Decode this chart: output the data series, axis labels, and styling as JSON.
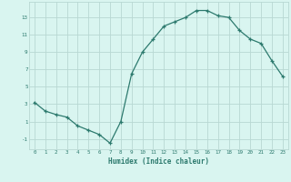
{
  "x": [
    0,
    1,
    2,
    3,
    4,
    5,
    6,
    7,
    8,
    9,
    10,
    11,
    12,
    13,
    14,
    15,
    16,
    17,
    18,
    19,
    20,
    21,
    22,
    23
  ],
  "y": [
    3.2,
    2.2,
    1.8,
    1.5,
    0.5,
    0.0,
    -0.5,
    -1.5,
    1.0,
    6.5,
    9.0,
    10.5,
    12.0,
    12.5,
    13.0,
    13.8,
    13.8,
    13.2,
    13.0,
    11.5,
    10.5,
    10.0,
    8.0,
    6.2
  ],
  "xlabel": "Humidex (Indice chaleur)",
  "line_color": "#2d7a6e",
  "bg_color": "#d9f5f0",
  "grid_color": "#b8d8d3",
  "tick_label_color": "#2d7a6e",
  "axis_label_color": "#2d7a6e",
  "xlim": [
    -0.5,
    23.5
  ],
  "ylim": [
    -2.2,
    14.8
  ],
  "yticks": [
    -1,
    1,
    3,
    5,
    7,
    9,
    11,
    13
  ],
  "xticks": [
    0,
    1,
    2,
    3,
    4,
    5,
    6,
    7,
    8,
    9,
    10,
    11,
    12,
    13,
    14,
    15,
    16,
    17,
    18,
    19,
    20,
    21,
    22,
    23
  ]
}
